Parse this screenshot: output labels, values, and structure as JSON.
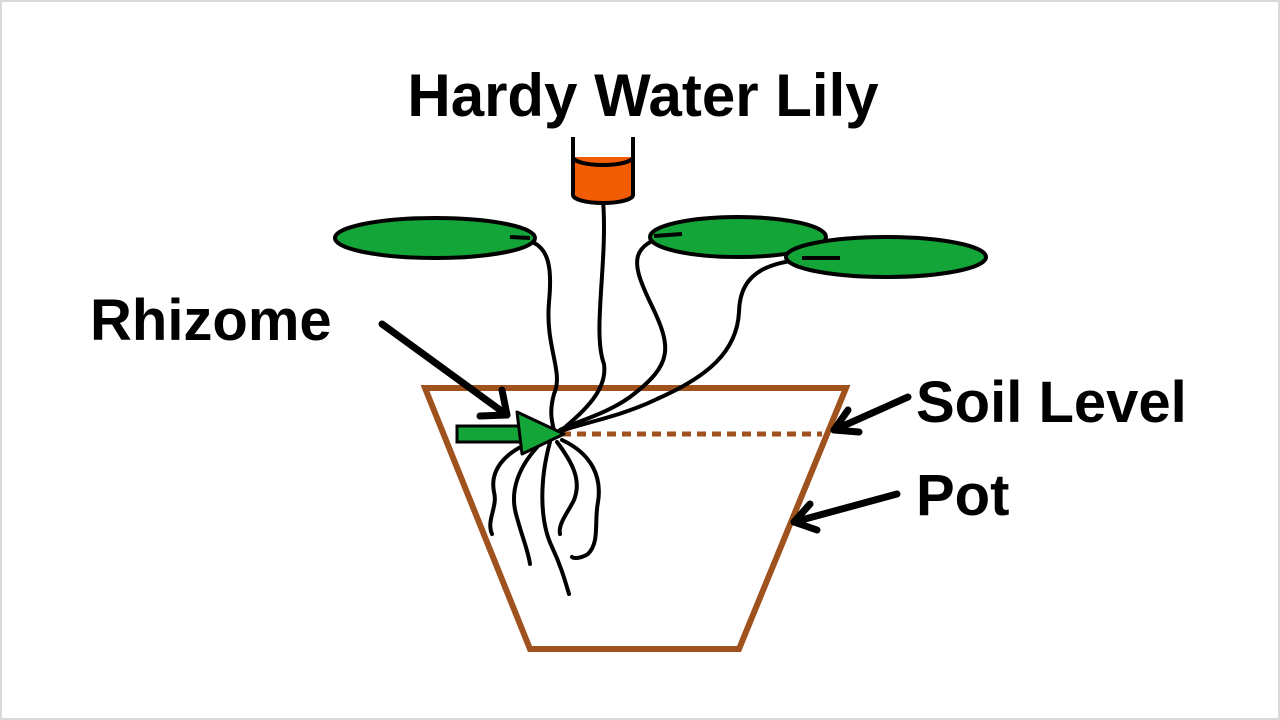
{
  "title": "Hardy Water Lily",
  "labels": {
    "rhizome": "Rhizome",
    "soil_level": "Soil Level",
    "pot": "Pot"
  },
  "colors": {
    "leaf": "#13a538",
    "flower_bud": "#f25c05",
    "pot": "#a0521e",
    "soil_line": "#a0521e",
    "rhizome": "#13a538",
    "stem": "#000000",
    "text": "#000000"
  }
}
